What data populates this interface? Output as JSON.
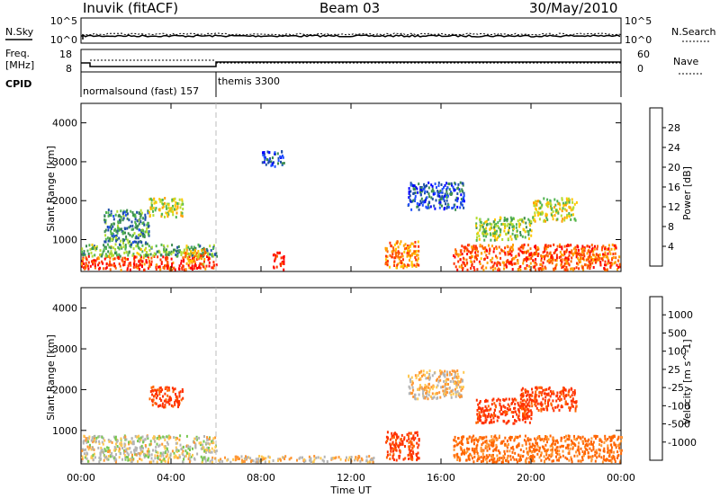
{
  "header": {
    "station": "Inuvik (fitACF)",
    "beam": "Beam 03",
    "date": "30/May/2010"
  },
  "nsky_panel": {
    "left_label": "N.Sky",
    "right_label": "N.Search",
    "left_ticks": [
      "10^5",
      "10^0"
    ],
    "right_ticks": [
      "10^5",
      "10^0"
    ]
  },
  "freq_panel": {
    "left_label_1": "Freq.",
    "left_label_2": "[MHz]",
    "right_label": "Nave",
    "left_ticks": [
      "18",
      "8"
    ],
    "right_ticks": [
      "60",
      "0"
    ]
  },
  "cpid": {
    "label": "CPID",
    "segments": [
      {
        "name": "normalsound (fast) 157",
        "start_hour": 0.0,
        "end_hour": 6.0
      },
      {
        "name": "themis 3300",
        "start_hour": 6.0,
        "end_hour": 24.0
      }
    ]
  },
  "chart_data": [
    {
      "type": "heatmap",
      "name": "power",
      "ylabel": "Slant Range [km]",
      "ylim": [
        180,
        4500
      ],
      "yticks": [
        "4000",
        "3000",
        "2000",
        "1000"
      ],
      "xlabel": "Time UT",
      "xlim_hours": [
        0,
        24
      ],
      "xticks": [
        "00:00",
        "04:00",
        "08:00",
        "12:00",
        "16:00",
        "20:00",
        "00:00"
      ],
      "colorbar_label": "Power [dB]",
      "colorbar_ticks": [
        "28",
        "24",
        "20",
        "16",
        "12",
        "8",
        "4"
      ],
      "colorbar_colors": [
        "#0000ff",
        "#2050ff",
        "#1f4fa8",
        "#3c8c50",
        "#50b450",
        "#b4dc32",
        "#ffc800",
        "#ffa000",
        "#ff6400",
        "#ff3200",
        "#ff0000"
      ],
      "regions": [
        {
          "t0": 0.0,
          "t1": 6.0,
          "r0": 250,
          "r1": 600,
          "power": 26
        },
        {
          "t0": 0.0,
          "t1": 6.0,
          "r0": 600,
          "r1": 900,
          "power": 12
        },
        {
          "t0": 1.0,
          "t1": 3.0,
          "r0": 900,
          "r1": 1800,
          "power": 10
        },
        {
          "t0": 3.0,
          "t1": 4.5,
          "r0": 1600,
          "r1": 2100,
          "power": 16
        },
        {
          "t0": 4.5,
          "t1": 5.5,
          "r0": 400,
          "r1": 800,
          "power": 20
        },
        {
          "t0": 8.5,
          "t1": 9.0,
          "r0": 250,
          "r1": 700,
          "power": 28
        },
        {
          "t0": 8.0,
          "t1": 9.0,
          "r0": 2900,
          "r1": 3300,
          "power": 6
        },
        {
          "t0": 13.5,
          "t1": 15.0,
          "r0": 300,
          "r1": 1000,
          "power": 22
        },
        {
          "t0": 14.5,
          "t1": 17.0,
          "r0": 1800,
          "r1": 2500,
          "power": 6
        },
        {
          "t0": 16.5,
          "t1": 24.0,
          "r0": 250,
          "r1": 900,
          "power": 24
        },
        {
          "t0": 17.5,
          "t1": 20.0,
          "r0": 1000,
          "r1": 1600,
          "power": 14
        },
        {
          "t0": 20.0,
          "t1": 22.0,
          "r0": 1500,
          "r1": 2100,
          "power": 16
        }
      ]
    },
    {
      "type": "heatmap",
      "name": "velocity",
      "ylabel": "Slant Range [km]",
      "ylim": [
        180,
        4500
      ],
      "yticks": [
        "4000",
        "3000",
        "2000",
        "1000"
      ],
      "xlabel": "Time UT",
      "xlim_hours": [
        0,
        24
      ],
      "xticks": [
        "00:00",
        "04:00",
        "08:00",
        "12:00",
        "16:00",
        "20:00",
        "00:00"
      ],
      "colorbar_label": "Velocity [m s^-1]",
      "colorbar_ticks": [
        "1000",
        "500",
        "100",
        "25",
        "-25",
        "-100",
        "-500",
        "-1000"
      ],
      "colorbar_colors": [
        "#2840c8",
        "#1e6e50",
        "#32a050",
        "#78c850",
        "#b4b4b4",
        "#ffc850",
        "#ff9632",
        "#ff6400",
        "#ff3200",
        "#ff0000"
      ],
      "regions": [
        {
          "t0": 0.0,
          "t1": 6.0,
          "r0": 250,
          "r1": 900,
          "velocity": 50
        },
        {
          "t0": 3.0,
          "t1": 4.5,
          "r0": 1600,
          "r1": 2100,
          "velocity": -300
        },
        {
          "t0": 6.0,
          "t1": 13.0,
          "r0": 250,
          "r1": 400,
          "velocity": 0
        },
        {
          "t0": 13.5,
          "t1": 15.0,
          "r0": 300,
          "r1": 1000,
          "velocity": -300
        },
        {
          "t0": 14.5,
          "t1": 17.0,
          "r0": 1800,
          "r1": 2500,
          "velocity": 0
        },
        {
          "t0": 16.5,
          "t1": 24.0,
          "r0": 250,
          "r1": 900,
          "velocity": -150
        },
        {
          "t0": 17.5,
          "t1": 20.0,
          "r0": 1200,
          "r1": 1800,
          "velocity": -300
        },
        {
          "t0": 19.5,
          "t1": 22.0,
          "r0": 1500,
          "r1": 2100,
          "velocity": -300
        }
      ]
    }
  ]
}
